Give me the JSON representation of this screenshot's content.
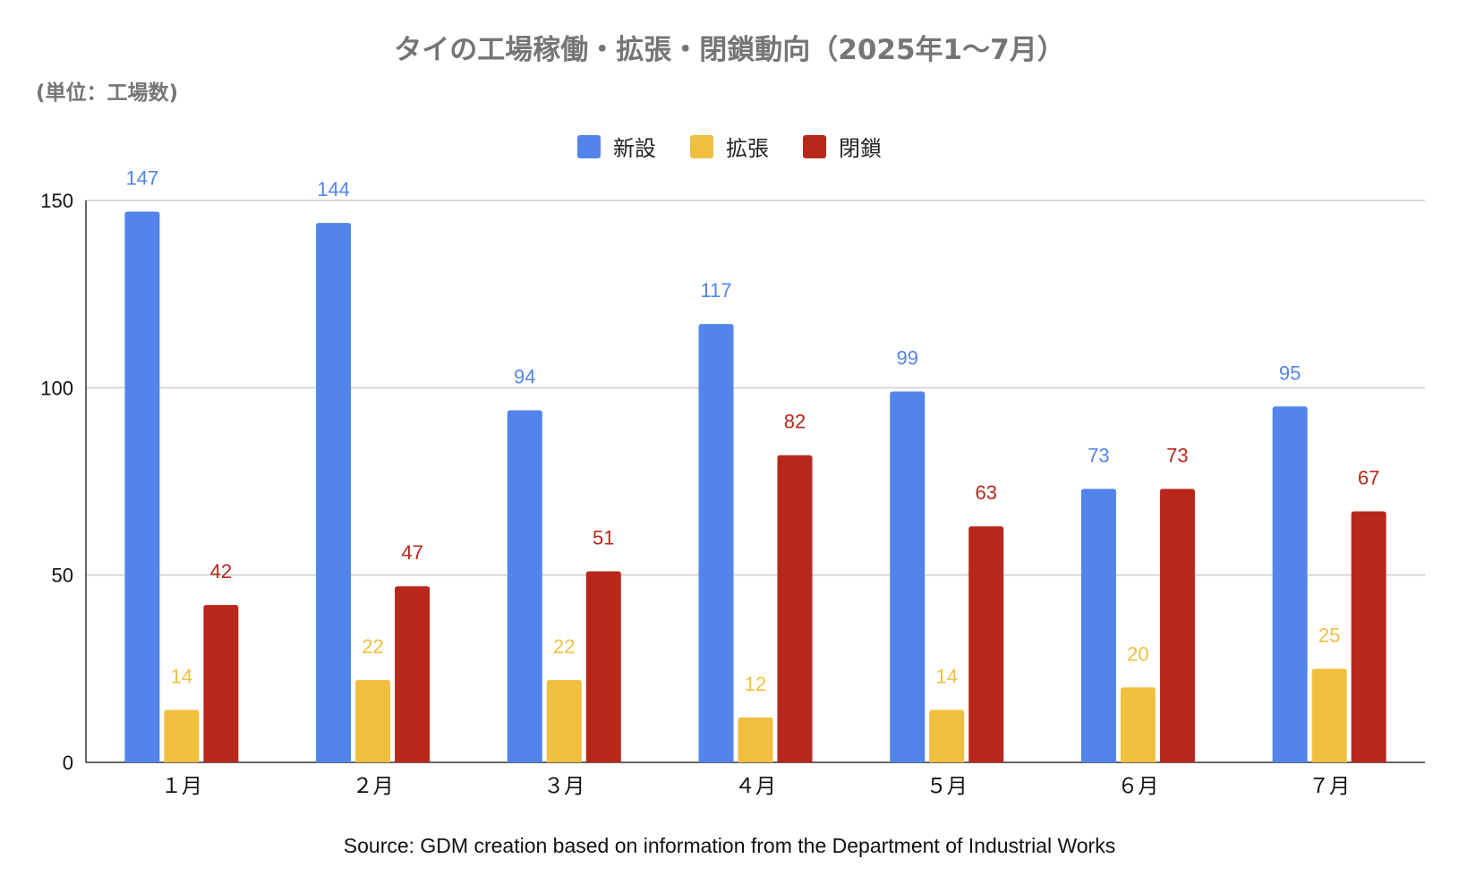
{
  "chart_data": {
    "type": "bar",
    "title": "タイの工場稼働・拡張・閉鎖動向（2025年1〜7月）",
    "subtitle": "(単位：工場数)",
    "categories": [
      "１月",
      "２月",
      "３月",
      "４月",
      "５月",
      "６月",
      "７月"
    ],
    "series": [
      {
        "name": "新設",
        "color": "#5384EB",
        "values": [
          147,
          144,
          94,
          117,
          99,
          73,
          95
        ]
      },
      {
        "name": "拡張",
        "color": "#F0BF3F",
        "values": [
          14,
          22,
          22,
          12,
          14,
          20,
          25
        ]
      },
      {
        "name": "閉鎖",
        "color": "#B8271C",
        "values": [
          42,
          47,
          51,
          82,
          63,
          73,
          67
        ]
      }
    ],
    "ylim": [
      0,
      150
    ],
    "yticks": [
      "0",
      "50",
      "100",
      "150"
    ],
    "grid": true,
    "legend_position": "top-center",
    "source": "Source: GDM creation based on information from the Department of Industrial Works"
  }
}
